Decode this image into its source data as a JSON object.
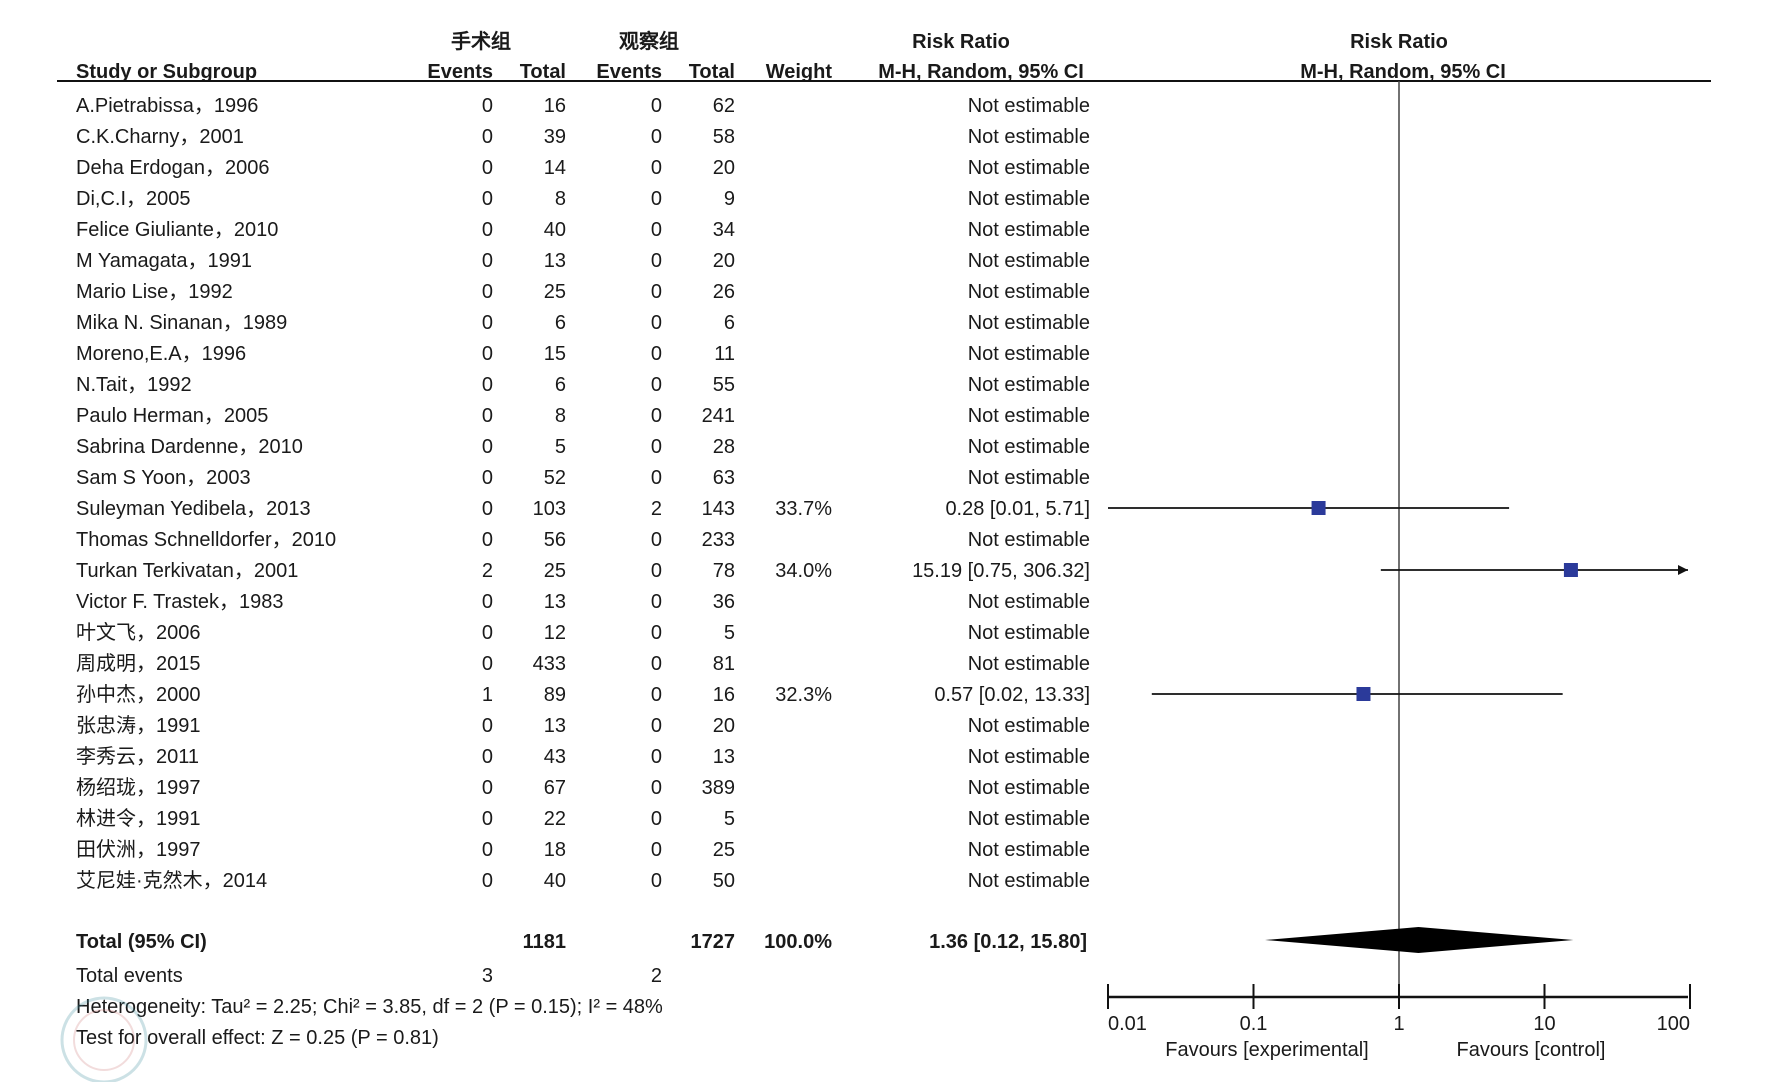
{
  "chart_data": {
    "type": "forest",
    "header": {
      "group1": "手术组",
      "group2": "观察组",
      "study": "Study or Subgroup",
      "events": "Events",
      "total": "Total",
      "weight": "Weight",
      "rr_title": "Risk Ratio",
      "rr_method": "M-H, Random, 95% CI",
      "plot_title": "Risk Ratio",
      "plot_method": "M-H, Random, 95% CI"
    },
    "studies": [
      {
        "name": "A.Pietrabissa，1996",
        "e1": "0",
        "n1": "16",
        "e2": "0",
        "n2": "62",
        "weight": "",
        "ci_text": "Not estimable"
      },
      {
        "name": "C.K.Charny，2001",
        "e1": "0",
        "n1": "39",
        "e2": "0",
        "n2": "58",
        "weight": "",
        "ci_text": "Not estimable"
      },
      {
        "name": "Deha Erdogan，2006",
        "e1": "0",
        "n1": "14",
        "e2": "0",
        "n2": "20",
        "weight": "",
        "ci_text": "Not estimable"
      },
      {
        "name": "Di,C.I，2005",
        "e1": "0",
        "n1": "8",
        "e2": "0",
        "n2": "9",
        "weight": "",
        "ci_text": "Not estimable"
      },
      {
        "name": "Felice Giuliante，2010",
        "e1": "0",
        "n1": "40",
        "e2": "0",
        "n2": "34",
        "weight": "",
        "ci_text": "Not estimable"
      },
      {
        "name": "M Yamagata，1991",
        "e1": "0",
        "n1": "13",
        "e2": "0",
        "n2": "20",
        "weight": "",
        "ci_text": "Not estimable"
      },
      {
        "name": "Mario Lise，1992",
        "e1": "0",
        "n1": "25",
        "e2": "0",
        "n2": "26",
        "weight": "",
        "ci_text": "Not estimable"
      },
      {
        "name": "Mika N. Sinanan，1989",
        "e1": "0",
        "n1": "6",
        "e2": "0",
        "n2": "6",
        "weight": "",
        "ci_text": "Not estimable"
      },
      {
        "name": "Moreno,E.A，1996",
        "e1": "0",
        "n1": "15",
        "e2": "0",
        "n2": "11",
        "weight": "",
        "ci_text": "Not estimable"
      },
      {
        "name": "N.Tait，1992",
        "e1": "0",
        "n1": "6",
        "e2": "0",
        "n2": "55",
        "weight": "",
        "ci_text": "Not estimable"
      },
      {
        "name": "Paulo Herman，2005",
        "e1": "0",
        "n1": "8",
        "e2": "0",
        "n2": "241",
        "weight": "",
        "ci_text": "Not estimable"
      },
      {
        "name": "Sabrina Dardenne，2010",
        "e1": "0",
        "n1": "5",
        "e2": "0",
        "n2": "28",
        "weight": "",
        "ci_text": "Not estimable"
      },
      {
        "name": "Sam S Yoon，2003",
        "e1": "0",
        "n1": "52",
        "e2": "0",
        "n2": "63",
        "weight": "",
        "ci_text": "Not estimable"
      },
      {
        "name": "Suleyman Yedibela，2013",
        "e1": "0",
        "n1": "103",
        "e2": "2",
        "n2": "143",
        "weight": "33.7%",
        "ci_text": "0.28 [0.01, 5.71]",
        "rr": 0.28,
        "lo": 0.01,
        "hi": 5.71
      },
      {
        "name": "Thomas Schnelldorfer，2010",
        "e1": "0",
        "n1": "56",
        "e2": "0",
        "n2": "233",
        "weight": "",
        "ci_text": "Not estimable"
      },
      {
        "name": "Turkan Terkivatan，2001",
        "e1": "2",
        "n1": "25",
        "e2": "0",
        "n2": "78",
        "weight": "34.0%",
        "ci_text": "15.19 [0.75, 306.32]",
        "rr": 15.19,
        "lo": 0.75,
        "hi": 306.32
      },
      {
        "name": "Victor F. Trastek，1983",
        "e1": "0",
        "n1": "13",
        "e2": "0",
        "n2": "36",
        "weight": "",
        "ci_text": "Not estimable"
      },
      {
        "name": "叶文飞，2006",
        "e1": "0",
        "n1": "12",
        "e2": "0",
        "n2": "5",
        "weight": "",
        "ci_text": "Not estimable"
      },
      {
        "name": "周成明，2015",
        "e1": "0",
        "n1": "433",
        "e2": "0",
        "n2": "81",
        "weight": "",
        "ci_text": "Not estimable"
      },
      {
        "name": "孙中杰，2000",
        "e1": "1",
        "n1": "89",
        "e2": "0",
        "n2": "16",
        "weight": "32.3%",
        "ci_text": "0.57 [0.02, 13.33]",
        "rr": 0.57,
        "lo": 0.02,
        "hi": 13.33
      },
      {
        "name": "张忠涛，1991",
        "e1": "0",
        "n1": "13",
        "e2": "0",
        "n2": "20",
        "weight": "",
        "ci_text": "Not estimable"
      },
      {
        "name": "李秀云，2011",
        "e1": "0",
        "n1": "43",
        "e2": "0",
        "n2": "13",
        "weight": "",
        "ci_text": "Not estimable"
      },
      {
        "name": "杨绍珑，1997",
        "e1": "0",
        "n1": "67",
        "e2": "0",
        "n2": "389",
        "weight": "",
        "ci_text": "Not estimable"
      },
      {
        "name": "林进令，1991",
        "e1": "0",
        "n1": "22",
        "e2": "0",
        "n2": "5",
        "weight": "",
        "ci_text": "Not estimable"
      },
      {
        "name": "田伏洲，1997",
        "e1": "0",
        "n1": "18",
        "e2": "0",
        "n2": "25",
        "weight": "",
        "ci_text": "Not estimable"
      },
      {
        "name": "艾尼娃·克然木，2014",
        "e1": "0",
        "n1": "40",
        "e2": "0",
        "n2": "50",
        "weight": "",
        "ci_text": "Not estimable"
      }
    ],
    "total": {
      "label": "Total (95% CI)",
      "n1": "1181",
      "n2": "1727",
      "weight": "100.0%",
      "ci_text": "1.36 [0.12, 15.80]",
      "rr": 1.36,
      "lo": 0.12,
      "hi": 15.8
    },
    "total_events": {
      "label": "Total events",
      "e1": "3",
      "e2": "2"
    },
    "heterogeneity": "Heterogeneity: Tau² = 2.25; Chi² = 3.85, df = 2 (P = 0.15); I² = 48%",
    "overall_effect": "Test for overall effect: Z = 0.25 (P = 0.81)",
    "axis": {
      "scale": "log",
      "ticks": [
        0.01,
        0.1,
        1,
        10,
        100
      ],
      "tick_labels": [
        "0.01",
        "0.1",
        "1",
        "10",
        "100"
      ],
      "xlim": [
        0.01,
        100
      ]
    },
    "favours_left": "Favours [experimental]",
    "favours_right": "Favours [control]",
    "colors": {
      "square": "#2b3a9a",
      "line": "#111111"
    }
  }
}
